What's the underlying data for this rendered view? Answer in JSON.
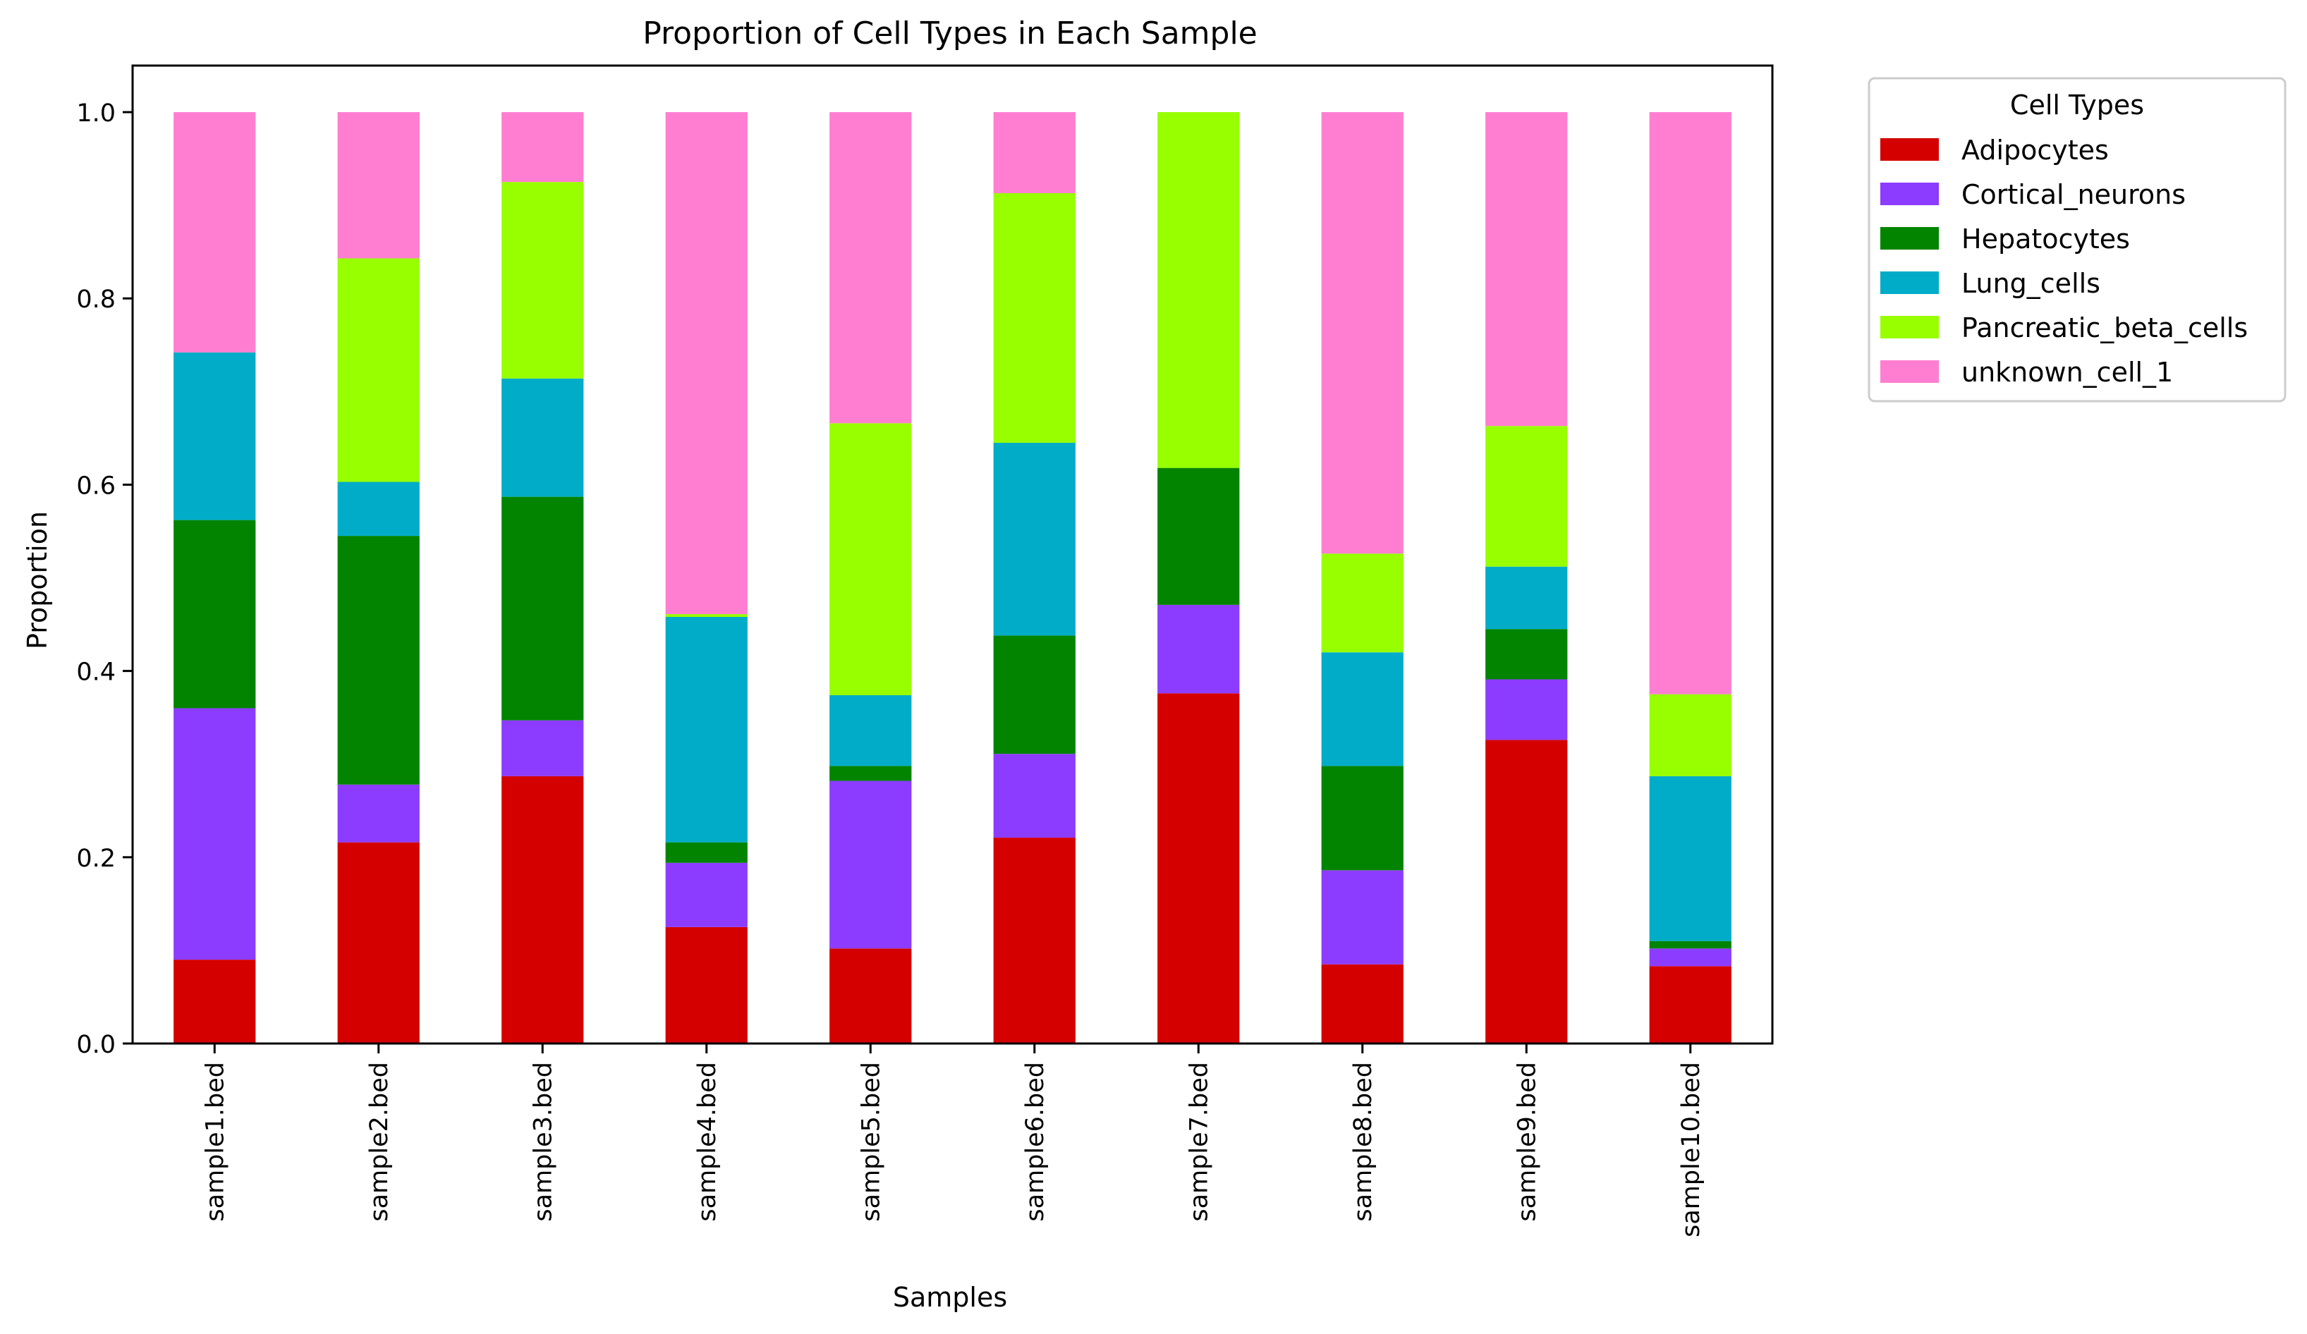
{
  "chart_data": {
    "type": "bar",
    "stacked": true,
    "title": "Proportion of Cell Types in Each Sample",
    "xlabel": "Samples",
    "ylabel": "Proportion",
    "ylim": [
      0,
      1.05
    ],
    "yticks": [
      "0.0",
      "0.2",
      "0.4",
      "0.6",
      "0.8",
      "1.0"
    ],
    "grid": false,
    "legend": {
      "title": "Cell Types",
      "placement": "outside upper right"
    },
    "categories": [
      "sample1.bed",
      "sample2.bed",
      "sample3.bed",
      "sample4.bed",
      "sample5.bed",
      "sample6.bed",
      "sample7.bed",
      "sample8.bed",
      "sample9.bed",
      "sample10.bed"
    ],
    "series": [
      {
        "name": "Adipocytes",
        "color": "#d40000",
        "values": [
          0.09,
          0.216,
          0.287,
          0.125,
          0.102,
          0.221,
          0.376,
          0.085,
          0.326,
          0.083
        ]
      },
      {
        "name": "Cortical_neurons",
        "color": "#8c3cff",
        "values": [
          0.27,
          0.062,
          0.06,
          0.069,
          0.18,
          0.09,
          0.095,
          0.101,
          0.065,
          0.019
        ]
      },
      {
        "name": "Hepatocytes",
        "color": "#028400",
        "values": [
          0.202,
          0.267,
          0.24,
          0.022,
          0.016,
          0.127,
          0.147,
          0.112,
          0.054,
          0.008
        ]
      },
      {
        "name": "Lung_cells",
        "color": "#00acc7",
        "values": [
          0.18,
          0.058,
          0.127,
          0.242,
          0.076,
          0.207,
          0.0,
          0.122,
          0.067,
          0.177
        ]
      },
      {
        "name": "Pancreatic_beta_cells",
        "color": "#97ff00",
        "values": [
          0.0,
          0.24,
          0.211,
          0.003,
          0.292,
          0.268,
          0.382,
          0.106,
          0.151,
          0.088
        ]
      },
      {
        "name": "unknown_cell_1",
        "color": "#ff7ed1",
        "values": [
          0.258,
          0.157,
          0.075,
          0.539,
          0.334,
          0.087,
          0.0,
          0.474,
          0.337,
          0.625
        ]
      }
    ]
  }
}
